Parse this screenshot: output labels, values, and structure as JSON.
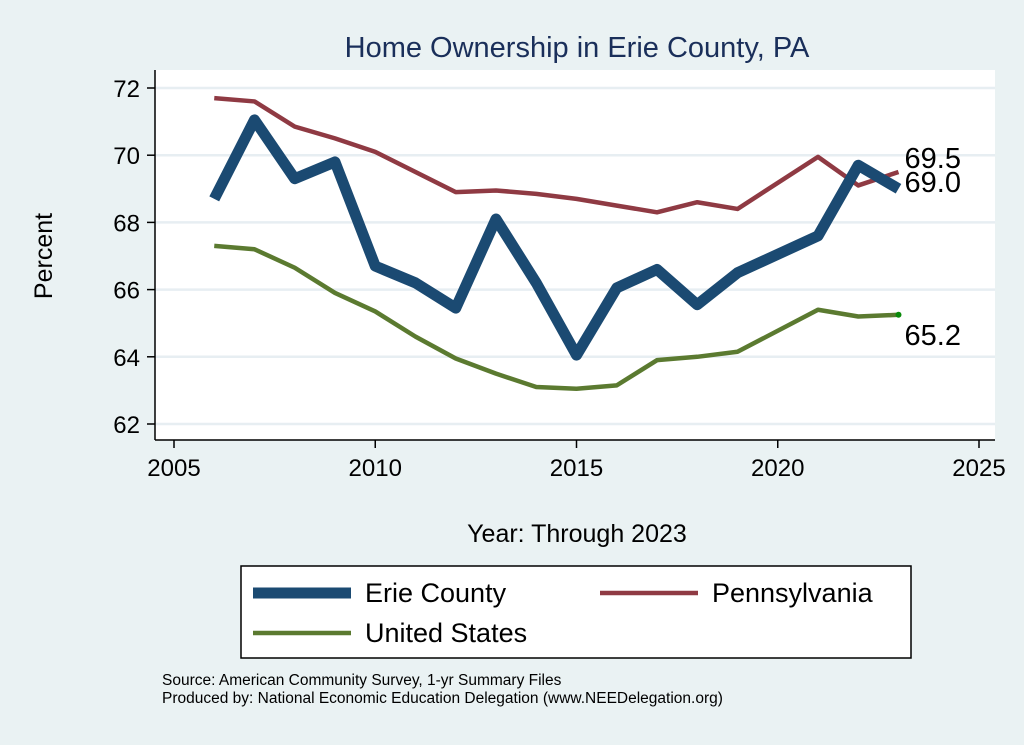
{
  "chart_data": {
    "type": "line",
    "title": "Home Ownership in Erie County, PA",
    "xlabel": "Year: Through 2023",
    "ylabel": "Percent",
    "xlim": [
      2005,
      2025
    ],
    "ylim": [
      62,
      72
    ],
    "xticks": [
      2005,
      2010,
      2015,
      2020,
      2025
    ],
    "yticks": [
      62,
      64,
      66,
      68,
      70,
      72
    ],
    "grid": true,
    "legend_placement": "bottom",
    "x": [
      2006,
      2007,
      2008,
      2009,
      2010,
      2011,
      2012,
      2013,
      2014,
      2015,
      2016,
      2017,
      2018,
      2019,
      2021,
      2022,
      2023
    ],
    "series": [
      {
        "name": "Erie County",
        "color": "#1b4a72",
        "values": [
          68.7,
          71.05,
          69.3,
          69.8,
          66.7,
          66.2,
          65.45,
          68.1,
          66.2,
          64.05,
          66.05,
          66.6,
          65.55,
          66.5,
          67.6,
          69.7,
          69.0
        ],
        "end_label": "69.0"
      },
      {
        "name": "Pennsylvania",
        "color": "#8f3a43",
        "values": [
          71.7,
          71.6,
          70.85,
          70.5,
          70.1,
          69.5,
          68.9,
          68.95,
          68.85,
          68.7,
          68.5,
          68.3,
          68.6,
          68.4,
          69.95,
          69.1,
          69.5
        ],
        "end_label": "69.5"
      },
      {
        "name": "United States",
        "color": "#5b7a30",
        "values": [
          67.3,
          67.2,
          66.65,
          65.9,
          65.35,
          64.6,
          63.95,
          63.5,
          63.1,
          63.05,
          63.15,
          63.9,
          64.0,
          64.15,
          65.4,
          65.2,
          65.25
        ],
        "end_label": "65.2"
      }
    ]
  },
  "source": "Source: American Community Survey, 1-yr Summary Files",
  "producer": "Produced by: National Economic Education Delegation (www.NEEDelegation.org)"
}
